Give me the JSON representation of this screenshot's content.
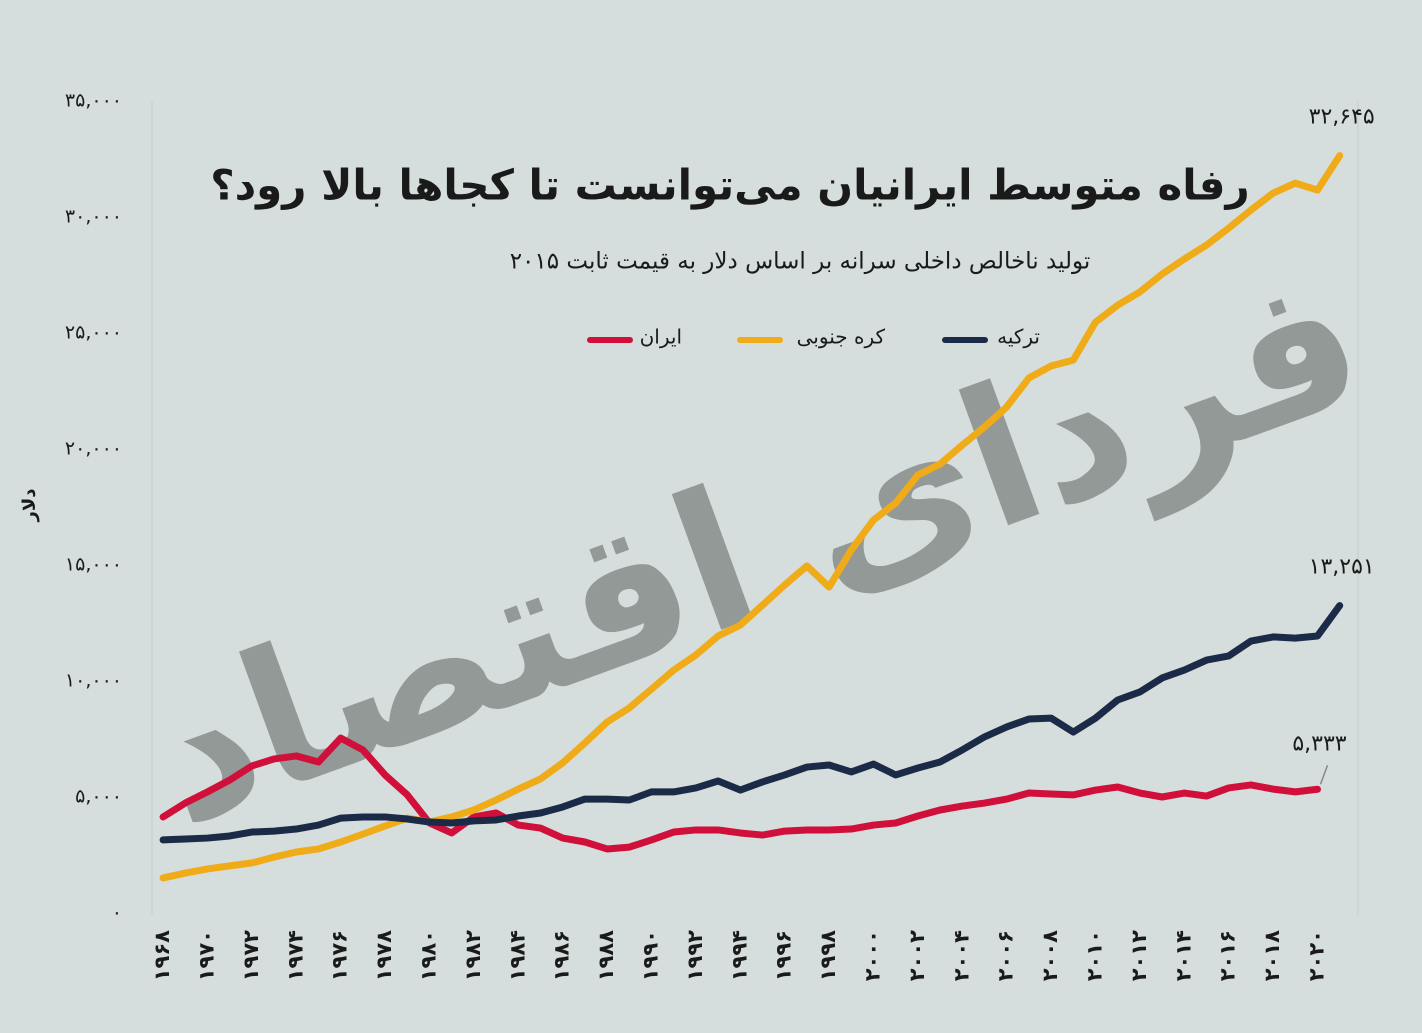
{
  "chart_data": {
    "type": "line",
    "title": "رفاه متوسط ایرانیان می‌توانست تا کجاها بالا رود؟",
    "subtitle": "تولید ناخالص داخلی سرانه بر اساس دلار به قیمت ثابت ۲۰۱۵",
    "y_label": "دلار",
    "watermark": "فردای اقتصاد",
    "x": [
      1968,
      1969,
      1970,
      1971,
      1972,
      1973,
      1974,
      1975,
      1976,
      1977,
      1978,
      1979,
      1980,
      1981,
      1982,
      1983,
      1984,
      1985,
      1986,
      1987,
      1988,
      1989,
      1990,
      1991,
      1992,
      1993,
      1994,
      1995,
      1996,
      1997,
      1998,
      1999,
      2000,
      2001,
      2002,
      2003,
      2004,
      2005,
      2006,
      2007,
      2008,
      2009,
      2010,
      2011,
      2012,
      2013,
      2014,
      2015,
      2016,
      2017,
      2018,
      2019,
      2020,
      2021
    ],
    "xlim": [
      1967.5,
      2022.5
    ],
    "xticks": [
      {
        "value": 1968,
        "label": "۱۹۶۸"
      },
      {
        "value": 1970,
        "label": "۱۹۷۰"
      },
      {
        "value": 1972,
        "label": "۱۹۷۲"
      },
      {
        "value": 1974,
        "label": "۱۹۷۴"
      },
      {
        "value": 1976,
        "label": "۱۹۷۶"
      },
      {
        "value": 1978,
        "label": "۱۹۷۸"
      },
      {
        "value": 1980,
        "label": "۱۹۸۰"
      },
      {
        "value": 1982,
        "label": "۱۹۸۲"
      },
      {
        "value": 1984,
        "label": "۱۹۸۴"
      },
      {
        "value": 1986,
        "label": "۱۹۸۶"
      },
      {
        "value": 1988,
        "label": "۱۹۸۸"
      },
      {
        "value": 1990,
        "label": "۱۹۹۰"
      },
      {
        "value": 1992,
        "label": "۱۹۹۲"
      },
      {
        "value": 1994,
        "label": "۱۹۹۴"
      },
      {
        "value": 1996,
        "label": "۱۹۹۶"
      },
      {
        "value": 1998,
        "label": "۱۹۹۸"
      },
      {
        "value": 2000,
        "label": "۲۰۰۰"
      },
      {
        "value": 2002,
        "label": "۲۰۰۲"
      },
      {
        "value": 2004,
        "label": "۲۰۰۴"
      },
      {
        "value": 2006,
        "label": "۲۰۰۶"
      },
      {
        "value": 2008,
        "label": "۲۰۰۸"
      },
      {
        "value": 2010,
        "label": "۲۰۱۰"
      },
      {
        "value": 2012,
        "label": "۲۰۱۲"
      },
      {
        "value": 2014,
        "label": "۲۰۱۴"
      },
      {
        "value": 2016,
        "label": "۲۰۱۶"
      },
      {
        "value": 2018,
        "label": "۲۰۱۸"
      },
      {
        "value": 2020,
        "label": "۲۰۲۰"
      }
    ],
    "ylim": [
      0,
      35000
    ],
    "yticks": [
      {
        "value": 0,
        "label": "۰"
      },
      {
        "value": 5000,
        "label": "۵,۰۰۰"
      },
      {
        "value": 10000,
        "label": "۱۰,۰۰۰"
      },
      {
        "value": 15000,
        "label": "۱۵,۰۰۰"
      },
      {
        "value": 20000,
        "label": "۲۰,۰۰۰"
      },
      {
        "value": 25000,
        "label": "۲۵,۰۰۰"
      },
      {
        "value": 30000,
        "label": "۳۰,۰۰۰"
      },
      {
        "value": 35000,
        "label": "۳۵,۰۰۰"
      }
    ],
    "series": [
      {
        "name": "ایران",
        "color": "#d0103a",
        "values": [
          4140,
          4740,
          5220,
          5730,
          6340,
          6640,
          6770,
          6510,
          7540,
          7030,
          5950,
          5090,
          3880,
          3450,
          4140,
          4310,
          3790,
          3660,
          3230,
          3060,
          2760,
          2840,
          3150,
          3490,
          3580,
          3580,
          3450,
          3360,
          3530,
          3580,
          3580,
          3620,
          3790,
          3880,
          4180,
          4440,
          4610,
          4740,
          4910,
          5170,
          5130,
          5090,
          5300,
          5430,
          5170,
          5000,
          5170,
          5040,
          5390,
          5520,
          5340,
          5220,
          5333,
          null
        ],
        "value_labels": [
          null,
          null,
          null,
          null,
          null,
          null,
          null,
          null,
          null,
          null,
          null,
          null,
          null,
          null,
          null,
          null,
          null,
          null,
          null,
          null,
          null,
          null,
          null,
          null,
          null,
          null,
          null,
          null,
          null,
          null,
          null,
          null,
          null,
          null,
          null,
          null,
          null,
          null,
          null,
          null,
          null,
          null,
          null,
          null,
          null,
          null,
          null,
          null,
          null,
          null,
          null,
          null,
          "۵,۳۳۳",
          null
        ]
      },
      {
        "name": "کره جنوبی",
        "color": "#f0ab19",
        "values": [
          1510,
          1720,
          1900,
          2030,
          2160,
          2410,
          2630,
          2760,
          3060,
          3400,
          3750,
          4090,
          3920,
          4140,
          4440,
          4870,
          5340,
          5780,
          6470,
          7330,
          8230,
          8840,
          9650,
          10470,
          11120,
          11940,
          12410,
          13270,
          14140,
          14960,
          14050,
          15650,
          16940,
          17670,
          18880,
          19350,
          20170,
          20950,
          21810,
          23060,
          23580,
          23830,
          25470,
          26200,
          26770,
          27540,
          28190,
          28790,
          29520,
          30300,
          31030,
          31460,
          31160,
          32645
        ],
        "value_labels": [
          null,
          null,
          null,
          null,
          null,
          null,
          null,
          null,
          null,
          null,
          null,
          null,
          null,
          null,
          null,
          null,
          null,
          null,
          null,
          null,
          null,
          null,
          null,
          null,
          null,
          null,
          null,
          null,
          null,
          null,
          null,
          null,
          null,
          null,
          null,
          null,
          null,
          null,
          null,
          null,
          null,
          null,
          null,
          null,
          null,
          null,
          null,
          null,
          null,
          null,
          null,
          null,
          null,
          "۳۲,۶۴۵"
        ]
      },
      {
        "name": "ترکیه",
        "color": "#1b2a47",
        "values": [
          3150,
          3190,
          3230,
          3320,
          3490,
          3530,
          3620,
          3790,
          4090,
          4140,
          4140,
          4050,
          3920,
          3880,
          3970,
          4010,
          4180,
          4310,
          4570,
          4910,
          4910,
          4870,
          5220,
          5220,
          5390,
          5690,
          5300,
          5650,
          5950,
          6290,
          6380,
          6080,
          6420,
          5950,
          6250,
          6510,
          7030,
          7590,
          8020,
          8360,
          8400,
          7800,
          8400,
          9180,
          9530,
          10130,
          10470,
          10900,
          11080,
          11720,
          11900,
          11850,
          11940,
          13251
        ],
        "value_labels": [
          null,
          null,
          null,
          null,
          null,
          null,
          null,
          null,
          null,
          null,
          null,
          null,
          null,
          null,
          null,
          null,
          null,
          null,
          null,
          null,
          null,
          null,
          null,
          null,
          null,
          null,
          null,
          null,
          null,
          null,
          null,
          null,
          null,
          null,
          null,
          null,
          null,
          null,
          null,
          null,
          null,
          null,
          null,
          null,
          null,
          null,
          null,
          null,
          null,
          null,
          null,
          null,
          null,
          "۱۳,۲۵۱"
        ]
      }
    ]
  }
}
